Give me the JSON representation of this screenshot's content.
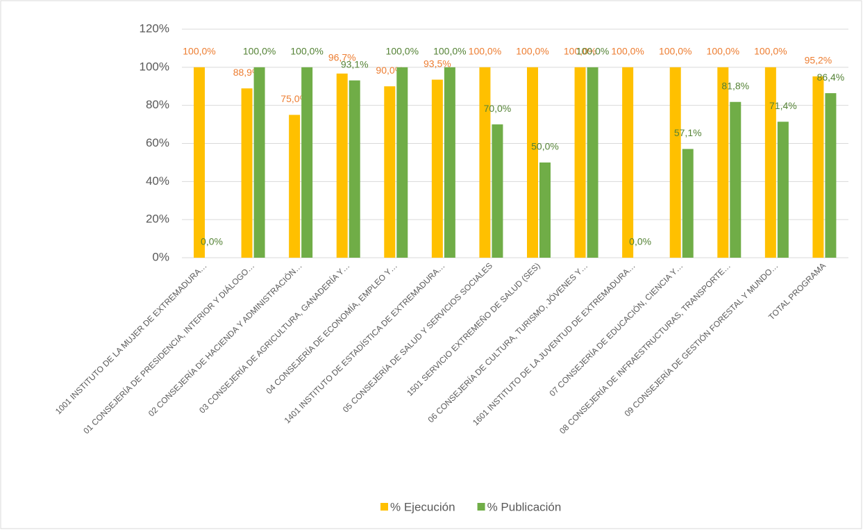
{
  "chart_data": {
    "type": "bar",
    "categories": [
      "1001 INSTITUTO DE LA MUJER DE EXTREMADURA…",
      "01 CONSEJERÍA DE PRESIDENCIA, INTERIOR Y DIÁLOGO…",
      "02 CONSEJERÍA DE HACIENDA Y ADMINISTRACIÓN…",
      "03 CONSEJERÍA DE AGRICULTURA, GANADERÍA Y…",
      "04 CONSEJERÍA DE ECONOMÍA, EMPLEO Y…",
      "1401 INSTITUTO DE ESTADÍSTICA DE EXTREMADURA…",
      "05 CONSEJERÍA DE SALUD Y SERVICIOS SOCIALES",
      "1501 SERVICIO EXTREMEÑO DE SALUD (SES)",
      "06 CONSEJERÍA DE CULTURA, TURISMO, JÓVENES Y…",
      "1601 INSTITUTO DE LA JUVENTUD DE EXTREMADURA…",
      "07 CONSEJERÍA DE EDUCACIÓN, CIENCIA Y…",
      "08 CONSEJERÍA DE INFRAESTRUCTURAS, TRANSPORTE…",
      "09 CONSEJERÍA DE GESTIÓN FORESTAL Y MUNDO…",
      "TOTAL PROGRAMA"
    ],
    "series": [
      {
        "name": "% Ejecución",
        "color": "#ffc000",
        "label_color": "#ed7d31",
        "values": [
          100,
          88.9,
          75,
          96.7,
          90,
          93.5,
          100,
          100,
          100,
          100,
          100,
          100,
          100,
          95.2
        ],
        "value_labels": [
          "100,0%",
          "88,9%",
          "75,0%",
          "96,7%",
          "90,0%",
          "93,5%",
          "100,0%",
          "100,0%",
          "100,0%",
          "100,0%",
          "100,0%",
          "100,0%",
          "100,0%",
          "95,2%"
        ]
      },
      {
        "name": "% Publicación",
        "color": "#70ad47",
        "label_color": "#548235",
        "values": [
          0,
          100,
          100,
          93.1,
          100,
          100,
          70,
          50,
          100,
          0,
          57.1,
          81.8,
          71.4,
          86.4
        ],
        "value_labels": [
          "0,0%",
          "100,0%",
          "100,0%",
          "93,1%",
          "100,0%",
          "100,0%",
          "70,0%",
          "50,0%",
          "100,0%",
          "0,0%",
          "57,1%",
          "81,8%",
          "71,4%",
          "86,4%"
        ]
      }
    ],
    "ylim": [
      0,
      120
    ],
    "yticks": [
      {
        "value": 0,
        "label": "0%"
      },
      {
        "value": 20,
        "label": "20%"
      },
      {
        "value": 40,
        "label": "40%"
      },
      {
        "value": 60,
        "label": "60%"
      },
      {
        "value": 80,
        "label": "80%"
      },
      {
        "value": 100,
        "label": "100%"
      },
      {
        "value": 120,
        "label": "120%"
      }
    ],
    "grid": true,
    "legend": "bottom"
  }
}
